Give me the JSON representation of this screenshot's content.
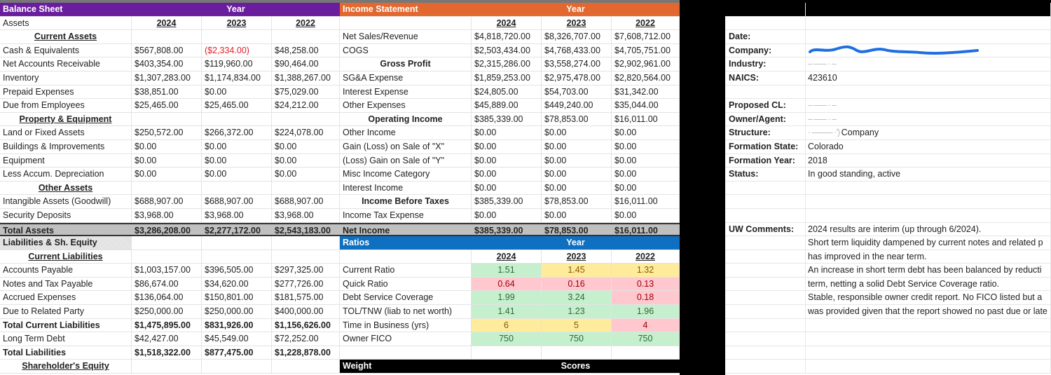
{
  "balance_sheet": {
    "title": "Balance Sheet",
    "year_label": "Year",
    "header_color": "#6a1e9e",
    "rows": [
      {
        "kind": "years",
        "label": "Assets",
        "values": [
          "2024",
          "2023",
          "2022"
        ]
      },
      {
        "kind": "section",
        "label": "Current Assets",
        "values": [
          "",
          "",
          ""
        ]
      },
      {
        "kind": "item",
        "label": "Cash & Equivalents",
        "values": [
          "$567,808.00",
          "($2,334.00)",
          "$48,258.00"
        ]
      },
      {
        "kind": "item",
        "label": "Net Accounts Receivable",
        "values": [
          "$403,354.00",
          "$119,960.00",
          "$90,464.00"
        ]
      },
      {
        "kind": "item",
        "label": "Inventory",
        "values": [
          "$1,307,283.00",
          "$1,174,834.00",
          "$1,388,267.00"
        ]
      },
      {
        "kind": "item",
        "label": "Prepaid Expenses",
        "values": [
          "$38,851.00",
          "$0.00",
          "$75,029.00"
        ]
      },
      {
        "kind": "item",
        "label": "Due from Employees",
        "values": [
          "$25,465.00",
          "$25,465.00",
          "$24,212.00"
        ]
      },
      {
        "kind": "section",
        "label": "Property & Equipment",
        "values": [
          "",
          "",
          ""
        ]
      },
      {
        "kind": "item",
        "label": "Land or Fixed Assets",
        "values": [
          "$250,572.00",
          "$266,372.00",
          "$224,078.00"
        ]
      },
      {
        "kind": "item",
        "label": "Buildings & Improvements",
        "values": [
          "$0.00",
          "$0.00",
          "$0.00"
        ]
      },
      {
        "kind": "item",
        "label": "Equipment",
        "values": [
          "$0.00",
          "$0.00",
          "$0.00"
        ]
      },
      {
        "kind": "item",
        "label": "Less Accum. Depreciation",
        "values": [
          "$0.00",
          "$0.00",
          "$0.00"
        ]
      },
      {
        "kind": "section",
        "label": "Other Assets",
        "values": [
          "",
          "",
          ""
        ]
      },
      {
        "kind": "item",
        "label": "Intangible Assets (Goodwill)",
        "values": [
          "$688,907.00",
          "$688,907.00",
          "$688,907.00"
        ]
      },
      {
        "kind": "item",
        "label": "Security Deposits",
        "values": [
          "$3,968.00",
          "$3,968.00",
          "$3,968.00"
        ]
      },
      {
        "kind": "total",
        "label": "Total Assets",
        "values": [
          "$3,286,208.00",
          "$2,277,172.00",
          "$2,543,183.00"
        ]
      },
      {
        "kind": "pattern",
        "label": "Liabilities & Sh. Equity",
        "values": [
          "",
          "",
          ""
        ]
      },
      {
        "kind": "section",
        "label": "Current Liabilities",
        "values": [
          "",
          "",
          ""
        ]
      },
      {
        "kind": "item",
        "label": "Accounts Payable",
        "values": [
          "$1,003,157.00",
          "$396,505.00",
          "$297,325.00"
        ]
      },
      {
        "kind": "item",
        "label": "Notes and Tax Payable",
        "values": [
          "$86,674.00",
          "$34,620.00",
          "$277,726.00"
        ]
      },
      {
        "kind": "item",
        "label": "Accrued Expenses",
        "values": [
          "$136,064.00",
          "$150,801.00",
          "$181,575.00"
        ]
      },
      {
        "kind": "item",
        "label": "Due to Related Party",
        "values": [
          "$250,000.00",
          "$250,000.00",
          "$400,000.00"
        ]
      },
      {
        "kind": "bold",
        "label": "Total Current Liabilities",
        "values": [
          "$1,475,895.00",
          "$831,926.00",
          "$1,156,626.00"
        ]
      },
      {
        "kind": "item",
        "label": "Long Term Debt",
        "values": [
          "$42,427.00",
          "$45,549.00",
          "$72,252.00"
        ]
      },
      {
        "kind": "bold",
        "label": "Total Liabilities",
        "values": [
          "$1,518,322.00",
          "$877,475.00",
          "$1,228,878.00"
        ]
      },
      {
        "kind": "section",
        "label": "Shareholder's Equity",
        "values": [
          "",
          "",
          ""
        ]
      }
    ]
  },
  "income_statement": {
    "title": "Income Statement",
    "year_label": "Year",
    "header_color": "#e2682f",
    "rows": [
      {
        "kind": "years",
        "label": "",
        "values": [
          "2024",
          "2023",
          "2022"
        ]
      },
      {
        "kind": "item",
        "label": "Net Sales/Revenue",
        "values": [
          "$4,818,720.00",
          "$8,326,707.00",
          "$7,608,712.00"
        ]
      },
      {
        "kind": "item",
        "label": "COGS",
        "values": [
          "$2,503,434.00",
          "$4,768,433.00",
          "$4,705,751.00"
        ]
      },
      {
        "kind": "sub",
        "label": "Gross Profit",
        "values": [
          "$2,315,286.00",
          "$3,558,274.00",
          "$2,902,961.00"
        ]
      },
      {
        "kind": "item",
        "label": "SG&A Expense",
        "values": [
          "$1,859,253.00",
          "$2,975,478.00",
          "$2,820,564.00"
        ]
      },
      {
        "kind": "item",
        "label": "Interest Expense",
        "values": [
          "$24,805.00",
          "$54,703.00",
          "$31,342.00"
        ]
      },
      {
        "kind": "item",
        "label": "Other Expenses",
        "values": [
          "$45,889.00",
          "$449,240.00",
          "$35,044.00"
        ]
      },
      {
        "kind": "sub",
        "label": "Operating Income",
        "values": [
          "$385,339.00",
          "$78,853.00",
          "$16,011.00"
        ]
      },
      {
        "kind": "item",
        "label": "Other Income",
        "values": [
          "$0.00",
          "$0.00",
          "$0.00"
        ]
      },
      {
        "kind": "item",
        "label": "Gain (Loss) on Sale of \"X\"",
        "values": [
          "$0.00",
          "$0.00",
          "$0.00"
        ]
      },
      {
        "kind": "item",
        "label": "(Loss) Gain on Sale of \"Y\"",
        "values": [
          "$0.00",
          "$0.00",
          "$0.00"
        ]
      },
      {
        "kind": "item",
        "label": "Misc Income Category",
        "values": [
          "$0.00",
          "$0.00",
          "$0.00"
        ]
      },
      {
        "kind": "item",
        "label": "Interest Income",
        "values": [
          "$0.00",
          "$0.00",
          "$0.00"
        ]
      },
      {
        "kind": "sub",
        "label": "Income Before Taxes",
        "values": [
          "$385,339.00",
          "$78,853.00",
          "$16,011.00"
        ]
      },
      {
        "kind": "item",
        "label": "Income Tax Expense",
        "values": [
          "$0.00",
          "$0.00",
          "$0.00"
        ]
      },
      {
        "kind": "total",
        "label": "Net Income",
        "values": [
          "$385,339.00",
          "$78,853.00",
          "$16,011.00"
        ]
      }
    ]
  },
  "ratios": {
    "title": "Ratios",
    "year_label": "Year",
    "header_color": "#0f6fc0",
    "years": [
      "2024",
      "2023",
      "2022"
    ],
    "rows": [
      {
        "label": "Current Ratio",
        "values": [
          "1.51",
          "1.45",
          "1.32"
        ],
        "ratings": [
          "good",
          "fair",
          "fair"
        ]
      },
      {
        "label": "Quick Ratio",
        "values": [
          "0.64",
          "0.16",
          "0.13"
        ],
        "ratings": [
          "poor",
          "poor",
          "poor"
        ]
      },
      {
        "label": "Debt Service Coverage",
        "values": [
          "1.99",
          "3.24",
          "0.18"
        ],
        "ratings": [
          "good",
          "good",
          "poor"
        ]
      },
      {
        "label": "TOL/TNW (liab to net worth)",
        "values": [
          "1.41",
          "1.23",
          "1.96"
        ],
        "ratings": [
          "good",
          "good",
          "good"
        ]
      },
      {
        "label": "Time in Business (yrs)",
        "values": [
          "6",
          "5",
          "4"
        ],
        "ratings": [
          "fair",
          "fair",
          "poor"
        ]
      },
      {
        "label": "Owner FICO",
        "values": [
          "750",
          "750",
          "750"
        ],
        "ratings": [
          "good",
          "good",
          "good"
        ]
      }
    ]
  },
  "scores_bar": {
    "weight_label": "Weight",
    "scores_label": "Scores"
  },
  "info": {
    "rows": [
      {
        "label": "",
        "value": ""
      },
      {
        "label": "",
        "value": ""
      },
      {
        "label": "Date:",
        "value": ""
      },
      {
        "label": "Company:",
        "value": "",
        "redacted": "scribble"
      },
      {
        "label": "Industry:",
        "value": "",
        "redacted": "blur"
      },
      {
        "label": "NAICS:",
        "value": "423610"
      },
      {
        "label": "",
        "value": ""
      },
      {
        "label": "Proposed CL:",
        "value": "",
        "redacted": "blur"
      },
      {
        "label": "Owner/Agent:",
        "value": "",
        "redacted": "blur"
      },
      {
        "label": "Structure:",
        "value": "Company",
        "redacted": "prefix"
      },
      {
        "label": "Formation State:",
        "value": "Colorado"
      },
      {
        "label": "Formation Year:",
        "value": "2018"
      },
      {
        "label": "Status:",
        "value": "In good standing, active"
      },
      {
        "label": "",
        "value": ""
      },
      {
        "label": "",
        "value": ""
      },
      {
        "label": "",
        "value": ""
      },
      {
        "label": "UW Comments:",
        "value": "2024 results are interim (up through 6/2024)."
      },
      {
        "label": "",
        "value": "Short term liquidity dampened by current notes and related p"
      },
      {
        "label": "",
        "value": "has improved in the near term."
      },
      {
        "label": "",
        "value": "An increase in short term debt has been balanced by reducti"
      },
      {
        "label": "",
        "value": "term, netting a solid Debt Service Coverage ratio."
      },
      {
        "label": "",
        "value": "Stable, responsible owner credit report. No FICO listed but a"
      },
      {
        "label": "",
        "value": "was provided given that the report showed no past due or late"
      },
      {
        "label": "",
        "value": ""
      },
      {
        "label": "",
        "value": ""
      },
      {
        "label": "",
        "value": ""
      },
      {
        "label": "",
        "value": ""
      }
    ]
  }
}
